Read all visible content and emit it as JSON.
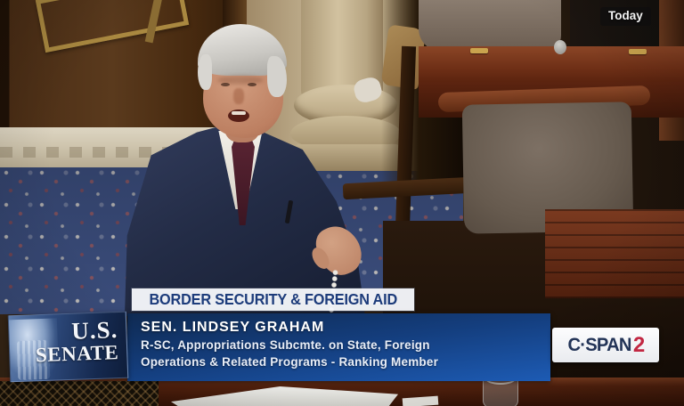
{
  "video_overlay": {
    "schedule_label": "Today"
  },
  "lower_third": {
    "topic": "BORDER SECURITY & FOREIGN AID",
    "speaker": {
      "name": "SEN. LINDSEY GRAHAM",
      "desc_line1": "R-SC, Appropriations Subcmte. on State, Foreign",
      "desc_line2": "Operations & Related Programs - Ranking Member"
    },
    "senate_logo": {
      "line1": "U.S.",
      "line2": "SENATE"
    },
    "network": {
      "name": "C·SPAN",
      "channel": "2"
    }
  },
  "colors": {
    "topic_text": "#1d3c7b",
    "banner_top": "#0f2a52",
    "banner_bottom": "#1d5bb4",
    "network_name": "#233457",
    "network_channel": "#c22742"
  }
}
